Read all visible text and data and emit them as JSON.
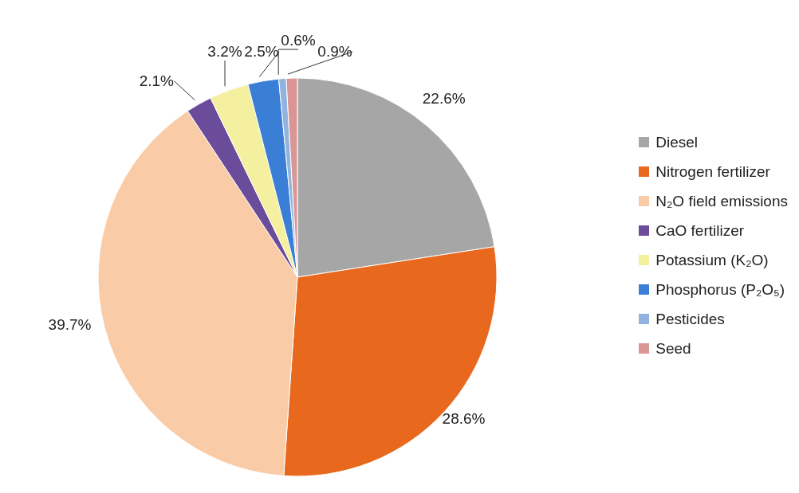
{
  "chart_data": {
    "type": "pie",
    "categories": [
      "Diesel",
      "Nitrogen fertilizer",
      "N₂O field emissions",
      "CaO fertilizer",
      "Potassium (K₂O)",
      "Phosphorus (P₂O₅)",
      "Pesticides",
      "Seed"
    ],
    "values": [
      22.6,
      28.6,
      39.7,
      2.1,
      3.2,
      2.5,
      0.6,
      0.9
    ],
    "value_labels": [
      "22.6%",
      "28.6%",
      "39.7%",
      "2.1%",
      "3.2%",
      "2.5%",
      "0.6%",
      "0.9%"
    ],
    "colors": [
      "#a6a6a6",
      "#e8681e",
      "#f9cba6",
      "#6b4c9a",
      "#f5f0a0",
      "#3a7fd5",
      "#92b3e0",
      "#d99694"
    ],
    "legend": "right"
  }
}
